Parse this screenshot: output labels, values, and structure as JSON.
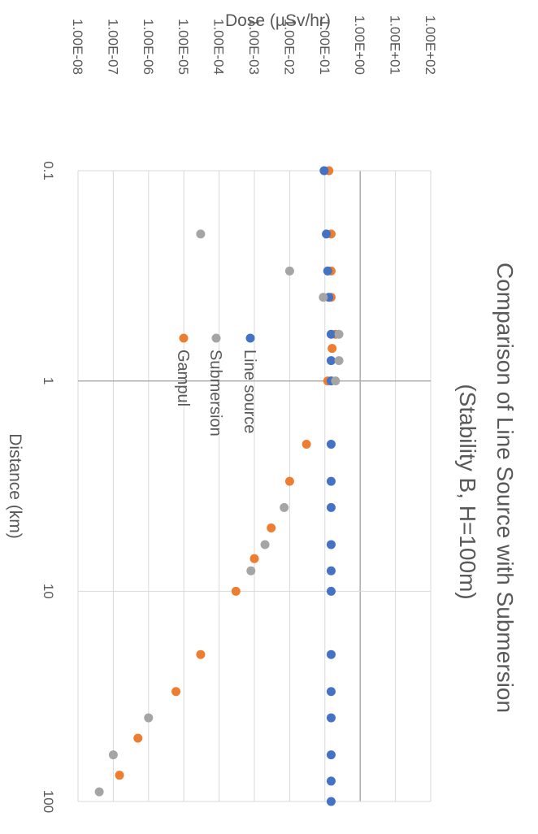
{
  "chart_data": {
    "type": "scatter",
    "title": "Comparison of Line Source with Submersion",
    "subtitle": "(Stability B, H=100m)",
    "xlabel": "Distance (km)",
    "ylabel": "Dose (µSv/hr)",
    "x_scale": "log",
    "y_scale": "log",
    "xlim": [
      0.1,
      100
    ],
    "ylim": [
      1e-08,
      100
    ],
    "x_tick_labels": [
      "0.1",
      "1",
      "10",
      "100"
    ],
    "y_tick_labels": [
      "1.00E-08",
      "1.00E-07",
      "1.00E-06",
      "1.00E-05",
      "1.00E-04",
      "1.00E-03",
      "1.00E-02",
      "1.00E-01",
      "1.00E+00",
      "1.00E+01",
      "1.00E+02"
    ],
    "grid": true,
    "legend_position": "inside-center",
    "series": [
      {
        "name": "Line source",
        "color": "#4472C4",
        "points": [
          [
            0.1,
            0.095
          ],
          [
            0.2,
            0.11
          ],
          [
            0.3,
            0.12
          ],
          [
            0.4,
            0.13
          ],
          [
            0.6,
            0.15
          ],
          [
            0.8,
            0.15
          ],
          [
            1.0,
            0.15
          ],
          [
            2.0,
            0.15
          ],
          [
            3.0,
            0.15
          ],
          [
            4.0,
            0.15
          ],
          [
            6.0,
            0.15
          ],
          [
            8.0,
            0.15
          ],
          [
            10.0,
            0.15
          ],
          [
            20.0,
            0.15
          ],
          [
            30.0,
            0.15
          ],
          [
            40.0,
            0.15
          ],
          [
            60.0,
            0.15
          ],
          [
            80.0,
            0.15
          ],
          [
            100.0,
            0.15
          ]
        ]
      },
      {
        "name": "Submersion",
        "color": "#A5A5A5",
        "points": [
          [
            0.2,
            3e-05
          ],
          [
            0.3,
            0.01
          ],
          [
            0.4,
            0.09
          ],
          [
            0.6,
            0.25
          ],
          [
            0.8,
            0.25
          ],
          [
            1.0,
            0.2
          ],
          [
            4.0,
            0.007
          ],
          [
            6.0,
            0.002
          ],
          [
            8.0,
            0.0008
          ],
          [
            40.0,
            1e-06
          ],
          [
            60.0,
            1e-07
          ],
          [
            90.0,
            4e-08
          ]
        ]
      },
      {
        "name": "Gampul",
        "color": "#ED7D31",
        "points": [
          [
            0.1,
            0.13
          ],
          [
            0.2,
            0.15
          ],
          [
            0.3,
            0.15
          ],
          [
            0.4,
            0.15
          ],
          [
            0.6,
            0.2
          ],
          [
            0.7,
            0.16
          ],
          [
            1.0,
            0.12
          ],
          [
            2.0,
            0.03
          ],
          [
            3.0,
            0.01
          ],
          [
            5.0,
            0.003
          ],
          [
            7.0,
            0.001
          ],
          [
            10.0,
            0.0003
          ],
          [
            20.0,
            3e-05
          ],
          [
            30.0,
            6e-06
          ],
          [
            50.0,
            5e-07
          ],
          [
            75.0,
            1.5e-07
          ]
        ]
      }
    ]
  }
}
